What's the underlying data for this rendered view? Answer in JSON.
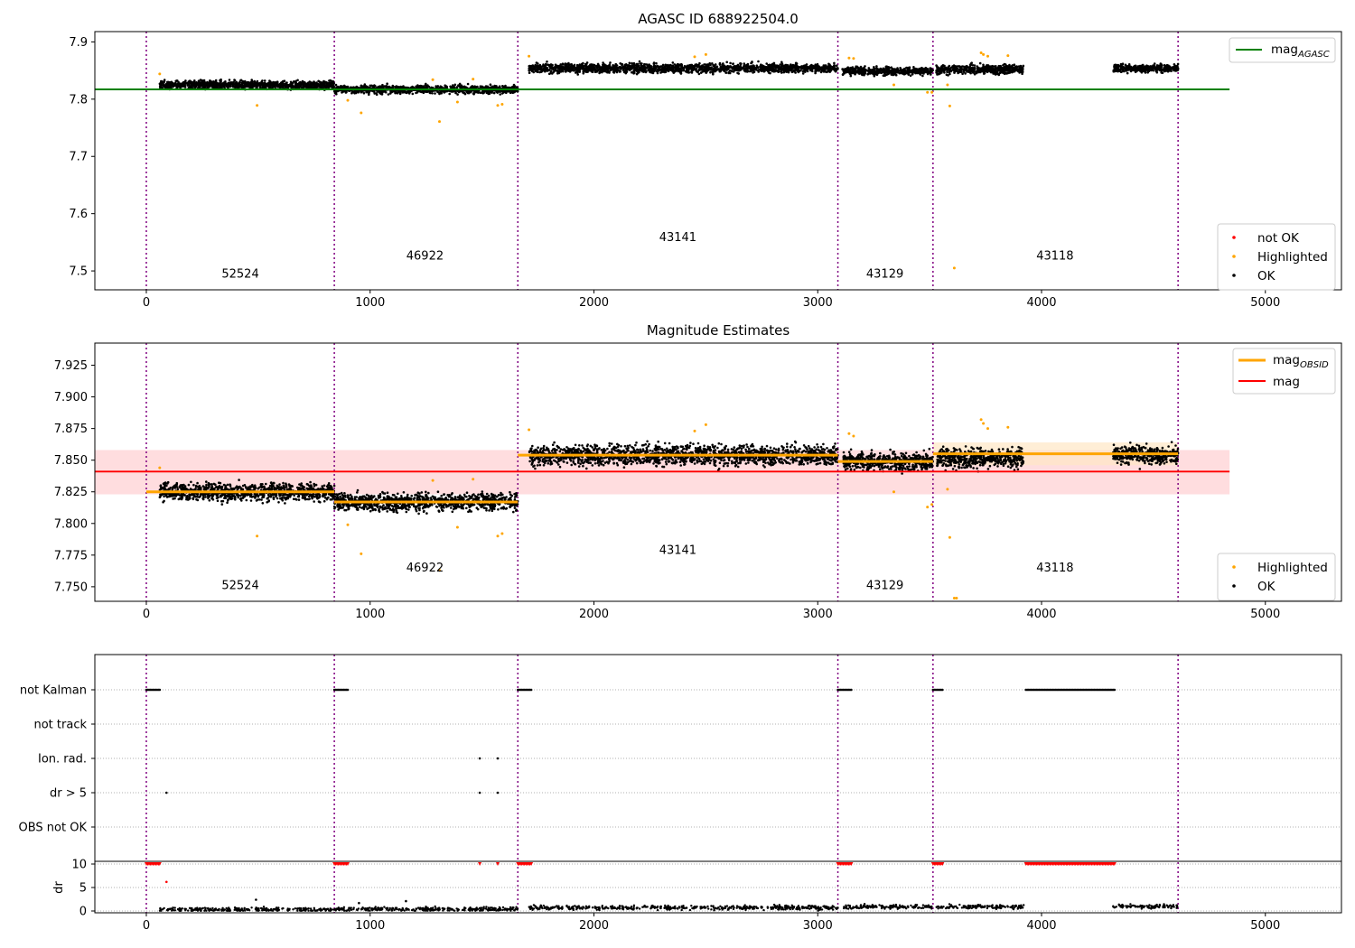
{
  "chart_data": [
    {
      "type": "scatter",
      "title": "AGASC ID 688922504.0",
      "xlim": [
        -230,
        5340
      ],
      "ylim": [
        7.467,
        7.918
      ],
      "xticks": [
        0,
        1000,
        2000,
        3000,
        4000,
        5000
      ],
      "yticks": [
        7.5,
        7.6,
        7.7,
        7.8,
        7.9
      ],
      "grid": false,
      "obsid_boundaries": [
        0,
        840,
        1660,
        3090,
        3515,
        4610
      ],
      "obsid_labels": [
        {
          "text": "52524",
          "x": 420,
          "y": 7.488
        },
        {
          "text": "46922",
          "x": 1245,
          "y": 7.52
        },
        {
          "text": "43141",
          "x": 2375,
          "y": 7.552
        },
        {
          "text": "43129",
          "x": 3300,
          "y": 7.488
        },
        {
          "text": "43118",
          "x": 4060,
          "y": 7.52
        }
      ],
      "reference_line": {
        "name": "mag_AGASC",
        "y": 7.817,
        "x": [
          -230,
          4840
        ],
        "color": "#008000"
      },
      "segments": [
        {
          "x": [
            60,
            840
          ],
          "y": 7.825,
          "spread": 0.007
        },
        {
          "x": [
            840,
            1660
          ],
          "y": 7.817,
          "spread": 0.007
        },
        {
          "x": [
            1710,
            3090
          ],
          "y": 7.854,
          "spread": 0.008
        },
        {
          "x": [
            3110,
            3515
          ],
          "y": 7.849,
          "spread": 0.007
        },
        {
          "x": [
            3530,
            3920
          ],
          "y": 7.852,
          "spread": 0.008
        },
        {
          "x": [
            4320,
            4610
          ],
          "y": 7.854,
          "spread": 0.007
        }
      ],
      "highlighted": [
        [
          60,
          7.844
        ],
        [
          495,
          7.789
        ],
        [
          900,
          7.798
        ],
        [
          960,
          7.776
        ],
        [
          1280,
          7.834
        ],
        [
          1310,
          7.761
        ],
        [
          1390,
          7.795
        ],
        [
          1460,
          7.835
        ],
        [
          1570,
          7.789
        ],
        [
          1590,
          7.791
        ],
        [
          1710,
          7.875
        ],
        [
          2450,
          7.874
        ],
        [
          2500,
          7.878
        ],
        [
          3140,
          7.872
        ],
        [
          3160,
          7.871
        ],
        [
          3340,
          7.825
        ],
        [
          3490,
          7.812
        ],
        [
          3510,
          7.812
        ],
        [
          3580,
          7.825
        ],
        [
          3590,
          7.788
        ],
        [
          3610,
          7.505
        ],
        [
          3730,
          7.881
        ],
        [
          3740,
          7.878
        ],
        [
          3760,
          7.875
        ],
        [
          3850,
          7.876
        ]
      ],
      "legend": [
        "not OK",
        "Highlighted",
        "OK"
      ],
      "legend_location": "lower right",
      "ref_legend": [
        "mag_AGASC"
      ],
      "ref_legend_location": "upper right"
    },
    {
      "type": "scatter",
      "title": "Magnitude Estimates",
      "xlim": [
        -230,
        5340
      ],
      "ylim": [
        7.7385,
        7.9425
      ],
      "xticks": [
        0,
        1000,
        2000,
        3000,
        4000,
        5000
      ],
      "yticks": [
        7.75,
        7.775,
        7.8,
        7.825,
        7.85,
        7.875,
        7.9,
        7.925
      ],
      "grid": false,
      "obsid_boundaries": [
        0,
        840,
        1660,
        3090,
        3515,
        4610
      ],
      "obsid_labels": [
        {
          "text": "52524",
          "x": 420,
          "y": 7.748
        },
        {
          "text": "46922",
          "x": 1245,
          "y": 7.762
        },
        {
          "text": "43141",
          "x": 2375,
          "y": 7.776
        },
        {
          "text": "43129",
          "x": 3300,
          "y": 7.748
        },
        {
          "text": "43118",
          "x": 4060,
          "y": 7.762
        }
      ],
      "mean_line": {
        "name": "mag",
        "y": 7.841,
        "x": [
          -230,
          4840
        ],
        "band": [
          7.823,
          7.858
        ],
        "color": "#ff0000"
      },
      "obsid_mag": [
        {
          "x": [
            0,
            840
          ],
          "y": 7.825
        },
        {
          "x": [
            840,
            1660
          ],
          "y": 7.817
        },
        {
          "x": [
            1660,
            3090
          ],
          "y": 7.854
        },
        {
          "x": [
            3090,
            3515
          ],
          "y": 7.849
        },
        {
          "x": [
            3515,
            4610
          ],
          "y": 7.855
        }
      ],
      "segments": [
        {
          "x": [
            60,
            840
          ],
          "y": 7.825,
          "spread": 0.007
        },
        {
          "x": [
            840,
            1660
          ],
          "y": 7.817,
          "spread": 0.007
        },
        {
          "x": [
            1710,
            3090
          ],
          "y": 7.854,
          "spread": 0.008
        },
        {
          "x": [
            3110,
            3515
          ],
          "y": 7.849,
          "spread": 0.007
        },
        {
          "x": [
            3530,
            3920
          ],
          "y": 7.852,
          "spread": 0.008
        },
        {
          "x": [
            4320,
            4610
          ],
          "y": 7.854,
          "spread": 0.007
        }
      ],
      "highlighted": [
        [
          60,
          7.844
        ],
        [
          495,
          7.79
        ],
        [
          900,
          7.799
        ],
        [
          960,
          7.776
        ],
        [
          1280,
          7.834
        ],
        [
          1310,
          7.763
        ],
        [
          1390,
          7.797
        ],
        [
          1460,
          7.835
        ],
        [
          1570,
          7.79
        ],
        [
          1590,
          7.792
        ],
        [
          1710,
          7.874
        ],
        [
          2450,
          7.873
        ],
        [
          2500,
          7.878
        ],
        [
          3140,
          7.871
        ],
        [
          3160,
          7.869
        ],
        [
          3340,
          7.825
        ],
        [
          3490,
          7.813
        ],
        [
          3510,
          7.815
        ],
        [
          3580,
          7.827
        ],
        [
          3590,
          7.789
        ],
        [
          3610,
          7.741
        ],
        [
          3620,
          7.741
        ],
        [
          3730,
          7.882
        ],
        [
          3740,
          7.879
        ],
        [
          3760,
          7.875
        ],
        [
          3850,
          7.876
        ]
      ],
      "legend": [
        "Highlighted",
        "OK"
      ],
      "legend_location": "lower right",
      "ref_legend": [
        "mag_OBSID",
        "mag"
      ],
      "ref_legend_location": "upper right"
    },
    {
      "type": "scatter",
      "title": "",
      "xlim": [
        -230,
        5340
      ],
      "xticks": [
        0,
        1000,
        2000,
        3000,
        4000,
        5000
      ],
      "obsid_boundaries": [
        0,
        840,
        1660,
        3090,
        3515,
        4610
      ],
      "flag_rows": [
        "not Kalman",
        "not track",
        "Ion. rad.",
        "dr > 5",
        "OBS not OK"
      ],
      "flags": [
        {
          "row": "not Kalman",
          "x_ranges": [
            [
              0,
              60
            ],
            [
              840,
              900
            ],
            [
              1660,
              1720
            ],
            [
              3090,
              3150
            ],
            [
              3515,
              3560
            ],
            [
              3930,
              4330
            ]
          ]
        },
        {
          "row": "Ion. rad.",
          "x": [
            1490,
            1570
          ]
        },
        {
          "row": "dr > 5",
          "x": [
            90,
            1490,
            1570
          ]
        }
      ],
      "dr_ylabel": "dr",
      "dr_ylim": [
        -1,
        10.5
      ],
      "dr_yticks": [
        0,
        5,
        10
      ],
      "dr_capped": [
        [
          0,
          60
        ],
        [
          840,
          900
        ],
        [
          1490,
          1490
        ],
        [
          1570,
          1570
        ],
        [
          1660,
          1720
        ],
        [
          3090,
          3150
        ],
        [
          3515,
          3560
        ],
        [
          3930,
          4330
        ]
      ],
      "dr_points": [
        [
          90,
          6.2
        ],
        [
          490,
          2.4
        ],
        [
          950,
          1.7
        ],
        [
          1160,
          2.1
        ]
      ],
      "dr_typical": [
        {
          "x": [
            60,
            840
          ],
          "y": 0.3
        },
        {
          "x": [
            840,
            1660
          ],
          "y": 0.4
        },
        {
          "x": [
            1710,
            3090
          ],
          "y": 0.7
        },
        {
          "x": [
            3110,
            3515
          ],
          "y": 0.9
        },
        {
          "x": [
            3530,
            3920
          ],
          "y": 0.9
        },
        {
          "x": [
            4320,
            4610
          ],
          "y": 1.0
        }
      ]
    }
  ],
  "legend_labels": {
    "mag_agasc": "mag",
    "mag_agasc_sub": "AGASC",
    "mag_obsid": "mag",
    "mag_obsid_sub": "OBSID",
    "mag": "mag",
    "not_ok": "not OK",
    "highlighted": "Highlighted",
    "ok": "OK"
  },
  "colors": {
    "ok": "#000000",
    "highlighted": "#ffa500",
    "not_ok": "#ff0000",
    "agasc": "#008000",
    "mean": "#ff0000",
    "band": "#ffdddf",
    "obsid_mag": "#ffa500",
    "obsid_band": "#ffe7c4",
    "boundary": "#800080",
    "flag_grid": "#b0b0b0"
  }
}
